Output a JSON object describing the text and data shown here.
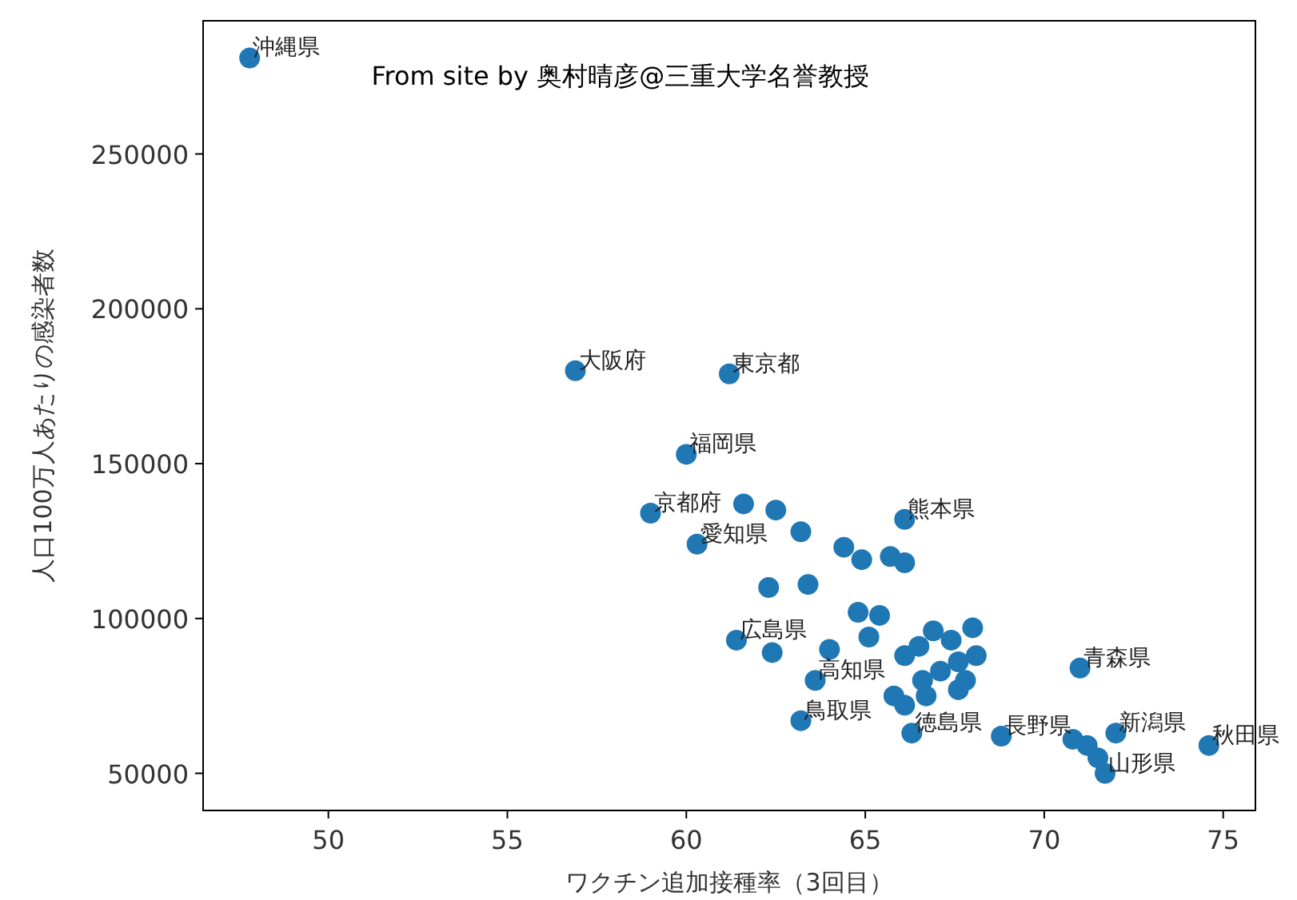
{
  "chart_data": {
    "type": "scatter",
    "xlabel": "ワクチン追加接種率（3回目）",
    "ylabel": "人口100万人あたりの感染者数",
    "xlim": [
      46.5,
      75.9
    ],
    "ylim": [
      38000,
      293000
    ],
    "xticks": [
      50,
      55,
      60,
      65,
      70,
      75
    ],
    "yticks": [
      50000,
      100000,
      150000,
      200000,
      250000
    ],
    "grid": false,
    "marker": "circle",
    "color": "#1f77b4",
    "x": [
      47.8,
      56.9,
      61.2,
      60.0,
      59.0,
      61.6,
      62.5,
      60.3,
      63.2,
      64.4,
      64.9,
      66.1,
      66.1,
      65.7,
      66.9,
      62.3,
      63.4,
      64.8,
      65.4,
      61.4,
      62.4,
      64.0,
      63.6,
      63.2,
      68.1,
      71.0,
      74.6,
      72.0,
      71.7,
      68.8,
      66.3,
      71.2,
      71.5,
      67.6,
      70.8,
      67.8,
      66.1,
      66.5,
      67.1,
      66.6,
      67.6,
      67.4,
      65.8,
      66.7,
      66.1,
      68.0,
      65.1
    ],
    "values": [
      281000,
      180000,
      179000,
      153000,
      134000,
      137000,
      135000,
      124000,
      128000,
      123000,
      119000,
      132000,
      118000,
      120000,
      96000,
      110000,
      111000,
      102000,
      101000,
      93000,
      89000,
      90000,
      80000,
      67000,
      88000,
      84000,
      59000,
      63000,
      50000,
      62000,
      63000,
      59000,
      55000,
      77000,
      61000,
      80000,
      88000,
      91000,
      83000,
      80000,
      86000,
      93000,
      75000,
      75000,
      72000,
      97000,
      94000
    ],
    "annotations": [
      "From site by 奥村晴彦@三重大学名誉教授",
      {
        "text": "沖縄県",
        "x": 47.8,
        "y": 281000
      },
      {
        "text": "大阪府",
        "x": 56.9,
        "y": 180000
      },
      {
        "text": "東京都",
        "x": 61.2,
        "y": 179000
      },
      {
        "text": "福岡県",
        "x": 60.0,
        "y": 153000
      },
      {
        "text": "京都府",
        "x": 59.0,
        "y": 134000
      },
      {
        "text": "愛知県",
        "x": 60.3,
        "y": 124000
      },
      {
        "text": "熊本県",
        "x": 66.1,
        "y": 132000
      },
      {
        "text": "広島県",
        "x": 61.4,
        "y": 93000
      },
      {
        "text": "高知県",
        "x": 63.6,
        "y": 80000
      },
      {
        "text": "鳥取県",
        "x": 63.2,
        "y": 67000
      },
      {
        "text": "青森県",
        "x": 71.0,
        "y": 84000
      },
      {
        "text": "秋田県",
        "x": 74.6,
        "y": 59000
      },
      {
        "text": "新潟県",
        "x": 72.0,
        "y": 63000
      },
      {
        "text": "山形県",
        "x": 71.7,
        "y": 50000
      },
      {
        "text": "長野県",
        "x": 68.8,
        "y": 62000
      },
      {
        "text": "徳島県",
        "x": 66.3,
        "y": 63000
      }
    ]
  }
}
